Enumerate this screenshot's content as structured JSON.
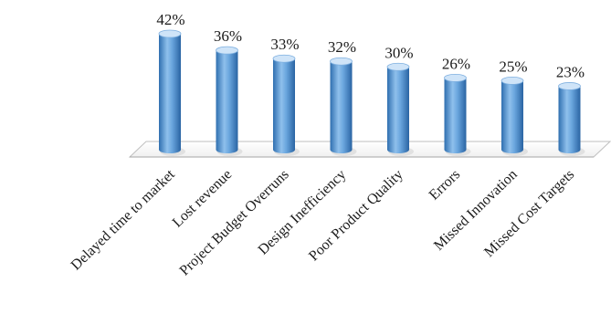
{
  "chart_data": {
    "type": "bar",
    "style": "3d-cylinder",
    "categories": [
      "Delayed time to market",
      "Lost revenue",
      "Project Budget Overruns",
      "Design Inefficiency",
      "Poor Product Quality",
      "Errors",
      "Missed Innovation",
      "Missed Cost Targets"
    ],
    "values": [
      42,
      36,
      33,
      32,
      30,
      26,
      25,
      23
    ],
    "value_labels": [
      "42%",
      "36%",
      "33%",
      "32%",
      "30%",
      "26%",
      "25%",
      "23%"
    ],
    "unit": "%",
    "title": "",
    "xlabel": "",
    "ylabel": "",
    "ylim": [
      0,
      42
    ],
    "grid": false,
    "legend": "none",
    "colors": {
      "bar": "#5b9bd5",
      "bar_dark": "#2f6fb0",
      "bar_light": "#cfe4f8",
      "floor": "#ffffff",
      "floor_edge": "#bfbfbf"
    }
  }
}
